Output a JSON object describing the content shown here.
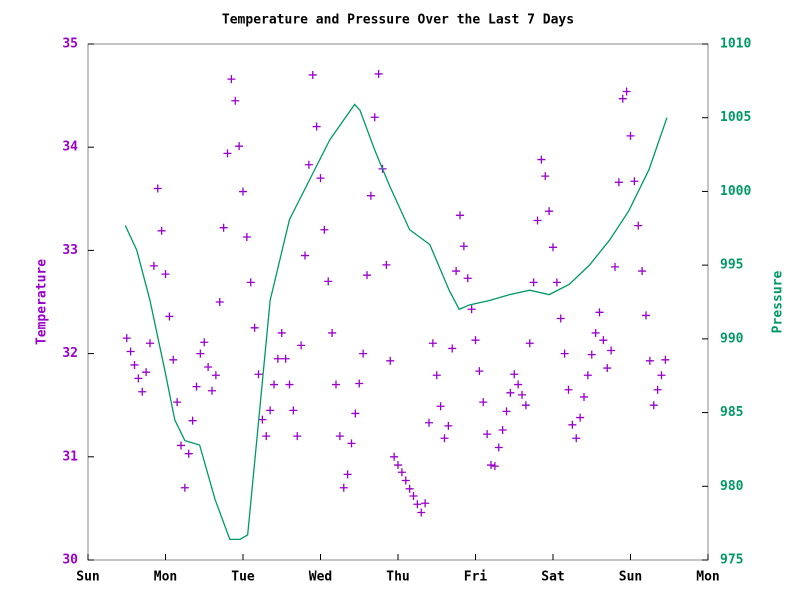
{
  "chart_data": {
    "type": "scatter",
    "title": "Temperature and Pressure Over the Last 7 Days",
    "ylabel": "Temperature",
    "y2label": "Pressure",
    "xlim": [
      0,
      8
    ],
    "xticks": [
      {
        "value": 0,
        "label": "Sun"
      },
      {
        "value": 1,
        "label": "Mon"
      },
      {
        "value": 2,
        "label": "Tue"
      },
      {
        "value": 3,
        "label": "Wed"
      },
      {
        "value": 4,
        "label": "Thu"
      },
      {
        "value": 5,
        "label": "Fri"
      },
      {
        "value": 6,
        "label": "Sat"
      },
      {
        "value": 7,
        "label": "Sun"
      },
      {
        "value": 8,
        "label": "Mon"
      }
    ],
    "ylim": [
      30,
      35
    ],
    "yticks": [
      30,
      31,
      32,
      33,
      34,
      35
    ],
    "y2lim": [
      975,
      1010
    ],
    "y2ticks": [
      975,
      980,
      985,
      990,
      995,
      1000,
      1005,
      1010
    ],
    "ycolor": "#9900cc",
    "y2color": "#009966",
    "series": [
      {
        "type": "scatter",
        "marker": "+",
        "color": "#9900cc",
        "x": [
          0.5,
          0.55,
          0.6,
          0.65,
          0.7,
          0.75,
          0.8,
          0.85,
          0.9,
          0.95,
          1.0,
          1.05,
          1.1,
          1.15,
          1.2,
          1.25,
          1.3,
          1.35,
          1.4,
          1.45,
          1.5,
          1.55,
          1.6,
          1.65,
          1.7,
          1.75,
          1.8,
          1.85,
          1.9,
          1.95,
          2.0,
          2.05,
          2.1,
          2.15,
          2.2,
          2.25,
          2.3,
          2.35,
          2.4,
          2.45,
          2.5,
          2.55,
          2.6,
          2.65,
          2.7,
          2.75,
          2.8,
          2.85,
          2.9,
          2.95,
          3.0,
          3.05,
          3.1,
          3.15,
          3.2,
          3.25,
          3.3,
          3.35,
          3.4,
          3.45,
          3.5,
          3.55,
          3.6,
          3.65,
          3.7,
          3.75,
          3.8,
          3.85,
          3.9,
          3.95,
          4.0,
          4.05,
          4.1,
          4.15,
          4.2,
          4.25,
          4.3,
          4.35,
          4.4,
          4.45,
          4.5,
          4.55,
          4.6,
          4.65,
          4.7,
          4.75,
          4.8,
          4.85,
          4.9,
          4.95,
          5.0,
          5.05,
          5.1,
          5.15,
          5.2,
          5.25,
          5.3,
          5.35,
          5.4,
          5.45,
          5.5,
          5.55,
          5.6,
          5.65,
          5.7,
          5.75,
          5.8,
          5.85,
          5.9,
          5.95,
          6.0,
          6.05,
          6.1,
          6.15,
          6.2,
          6.25,
          6.3,
          6.35,
          6.4,
          6.45,
          6.5,
          6.55,
          6.6,
          6.65,
          6.7,
          6.75,
          6.8,
          6.85,
          6.9,
          6.95,
          7.0,
          7.05,
          7.1,
          7.15,
          7.2,
          7.25,
          7.3,
          7.35,
          7.4,
          7.45
        ],
        "values": [
          32.15,
          32.02,
          31.89,
          31.76,
          31.63,
          31.82,
          32.1,
          32.85,
          33.6,
          33.19,
          32.77,
          32.36,
          31.94,
          31.53,
          31.11,
          30.7,
          31.03,
          31.35,
          31.68,
          32.0,
          32.11,
          31.87,
          31.64,
          31.79,
          32.5,
          33.22,
          33.94,
          34.66,
          34.45,
          34.01,
          33.57,
          33.13,
          32.69,
          32.25,
          31.8,
          31.36,
          31.2,
          31.45,
          31.7,
          31.95,
          32.2,
          31.95,
          31.7,
          31.45,
          31.2,
          32.08,
          32.95,
          33.83,
          34.7,
          34.2,
          33.7,
          33.2,
          32.7,
          32.2,
          31.7,
          31.2,
          30.7,
          30.83,
          31.13,
          31.42,
          31.71,
          32.0,
          32.76,
          33.53,
          34.29,
          34.71,
          33.79,
          32.86,
          31.93,
          31.0,
          30.92,
          30.85,
          30.77,
          30.69,
          30.62,
          30.54,
          30.46,
          30.55,
          31.33,
          32.1,
          31.79,
          31.49,
          31.18,
          31.3,
          32.05,
          32.8,
          33.34,
          33.04,
          32.73,
          32.43,
          32.13,
          31.83,
          31.53,
          31.22,
          30.92,
          30.91,
          31.09,
          31.26,
          31.44,
          31.62,
          31.8,
          31.7,
          31.6,
          31.5,
          32.1,
          32.69,
          33.29,
          33.88,
          33.72,
          33.38,
          33.03,
          32.69,
          32.34,
          32.0,
          31.65,
          31.31,
          31.18,
          31.38,
          31.58,
          31.79,
          31.99,
          32.2,
          32.4,
          32.13,
          31.86,
          32.03,
          32.84,
          33.66,
          34.47,
          34.54,
          34.11,
          33.67,
          33.24,
          32.8,
          32.37,
          31.93,
          31.5,
          31.65,
          31.79,
          31.94
        ]
      },
      {
        "type": "line",
        "axis": "y2",
        "color": "#009966",
        "x": [
          0.48,
          0.63,
          0.8,
          0.99,
          1.12,
          1.25,
          1.44,
          1.64,
          1.83,
          1.96,
          2.06,
          2.19,
          2.35,
          2.6,
          2.86,
          3.12,
          3.44,
          3.51,
          3.7,
          3.89,
          4.15,
          4.41,
          4.66,
          4.79,
          4.92,
          5.18,
          5.44,
          5.7,
          5.95,
          6.21,
          6.47,
          6.73,
          6.98,
          7.24,
          7.47
        ],
        "values": [
          997.7,
          996.0,
          992.6,
          987.9,
          984.5,
          983.1,
          982.8,
          979.1,
          976.4,
          976.4,
          976.7,
          983.8,
          992.6,
          998.1,
          1000.8,
          1003.5,
          1005.9,
          1005.5,
          1002.8,
          1000.4,
          997.4,
          996.4,
          993.3,
          992.0,
          992.3,
          992.6,
          993.0,
          993.3,
          993.0,
          993.7,
          995.0,
          996.7,
          998.7,
          1001.5,
          1005.0
        ]
      }
    ]
  }
}
